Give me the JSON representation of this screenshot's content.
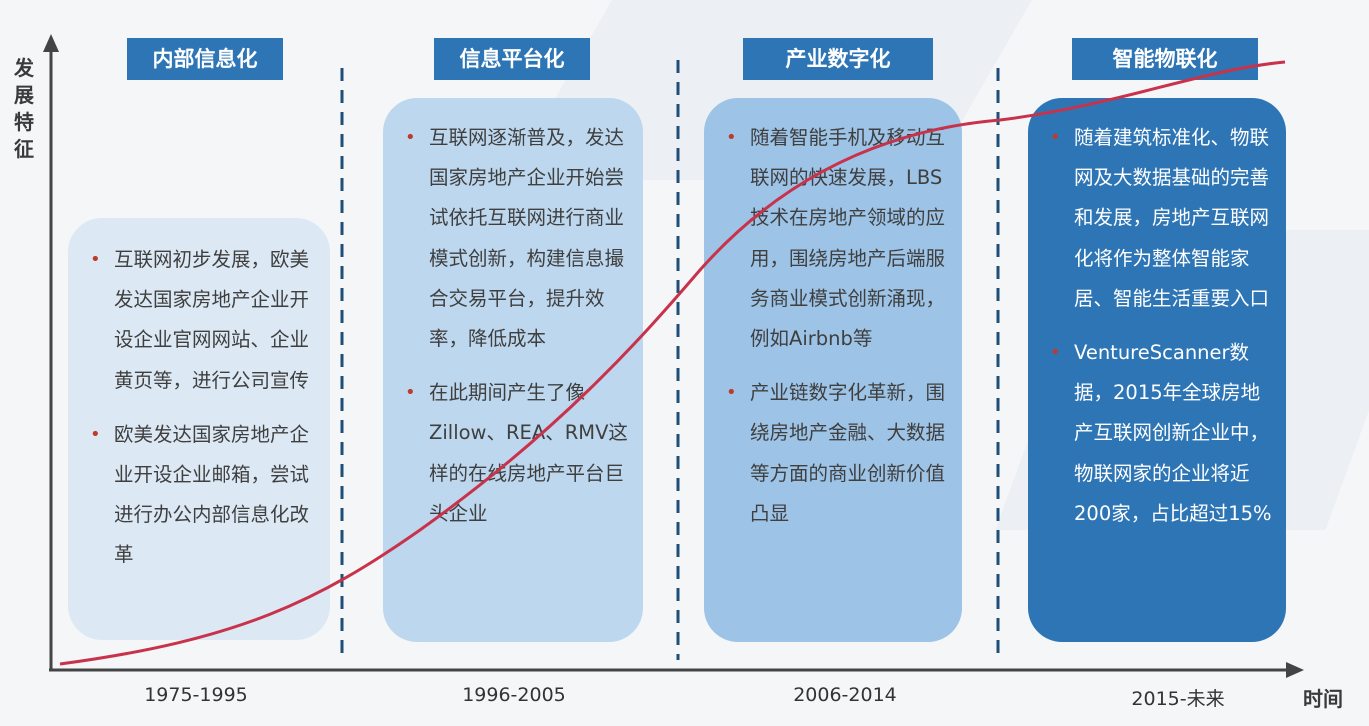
{
  "axis": {
    "y_label": "发展特征",
    "x_label": "时间"
  },
  "colors": {
    "title_bg": "#2e75b6",
    "curve": "#c8324a",
    "box1": "#dce9f5",
    "box2": "#bdd7ee",
    "box3": "#9dc3e6",
    "box4": "#2e75b6"
  },
  "stages": [
    {
      "title": "内部信息化",
      "period": "1975-1995",
      "bullets": [
        "互联网初步发展，欧美发达国家房地产企业开设企业官网网站、企业黄页等，进行公司宣传",
        "欧美发达国家房地产企业开设企业邮箱，尝试进行办公内部信息化改革"
      ]
    },
    {
      "title": "信息平台化",
      "period": "1996-2005",
      "bullets": [
        "互联网逐渐普及，发达国家房地产企业开始尝试依托互联网进行商业模式创新，构建信息撮合交易平台，提升效率，降低成本",
        "在此期间产生了像Zillow、REA、RMV这样的在线房地产平台巨头企业"
      ]
    },
    {
      "title": "产业数字化",
      "period": "2006-2014",
      "bullets": [
        "随着智能手机及移动互联网的快速发展，LBS技术在房地产领域的应用，围绕房地产后端服务商业模式创新涌现，例如Airbnb等",
        "产业链数字化革新，围绕房地产金融、大数据等方面的商业创新价值凸显"
      ]
    },
    {
      "title": "智能物联化",
      "period": "2015-未来",
      "bullets": [
        "随着建筑标准化、物联网及大数据基础的完善和发展，房地产互联网化将作为整体智能家居、智能生活重要入口",
        "VentureScanner数据，2015年全球房地产互联网创新企业中，物联网家的企业将近200家，占比超过15%"
      ]
    }
  ]
}
